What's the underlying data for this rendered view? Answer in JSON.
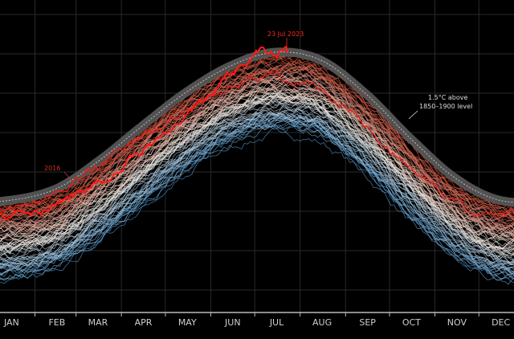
{
  "chart_data": {
    "type": "line",
    "title": "",
    "xlabel": "",
    "ylabel": "",
    "x_unit": "day of year",
    "y_unit": "°C",
    "xlim": [
      1,
      365
    ],
    "ylim": [
      13.3,
      17.8
    ],
    "grid": true,
    "legend": "none",
    "month_labels": [
      "JAN",
      "FEB",
      "MAR",
      "APR",
      "MAY",
      "JUN",
      "JUL",
      "AUG",
      "SEP",
      "OCT",
      "NOV",
      "DEC"
    ],
    "threshold": {
      "label_line1": "1.5°C above",
      "label_line2": "1850–1900 level",
      "color": "#5a5a5a",
      "x": [
        15,
        46,
        74,
        105,
        135,
        166,
        196,
        227,
        258,
        288,
        319,
        349
      ],
      "y": [
        15.11,
        15.25,
        15.59,
        16.05,
        16.48,
        16.82,
        16.99,
        16.89,
        16.46,
        15.9,
        15.39,
        15.11
      ]
    },
    "ensemble": {
      "offset_range": [
        -0.95,
        -0.05
      ],
      "color_cold": "#4f93c8",
      "color_mid": "#f2e6dc",
      "color_warm": "#c8442e"
    },
    "series": [
      {
        "name": "2016",
        "color": "#e0211b",
        "x": [
          1,
          20,
          40,
          55,
          75,
          100,
          130,
          160,
          190,
          220,
          250,
          280,
          310,
          340,
          365
        ],
        "y": [
          14.95,
          15.02,
          15.16,
          15.36,
          15.55,
          15.88,
          16.22,
          16.55,
          16.72,
          16.65,
          16.22,
          15.68,
          15.2,
          14.95,
          14.92
        ]
      },
      {
        "name": "23 Jul 2023",
        "color": "#ff1a14",
        "x": [
          1,
          32,
          60,
          91,
          121,
          152,
          166,
          176,
          185,
          195,
          204
        ],
        "y": [
          14.9,
          14.95,
          15.2,
          15.55,
          16.0,
          16.5,
          16.75,
          16.92,
          17.03,
          17.0,
          17.04
        ]
      }
    ]
  }
}
